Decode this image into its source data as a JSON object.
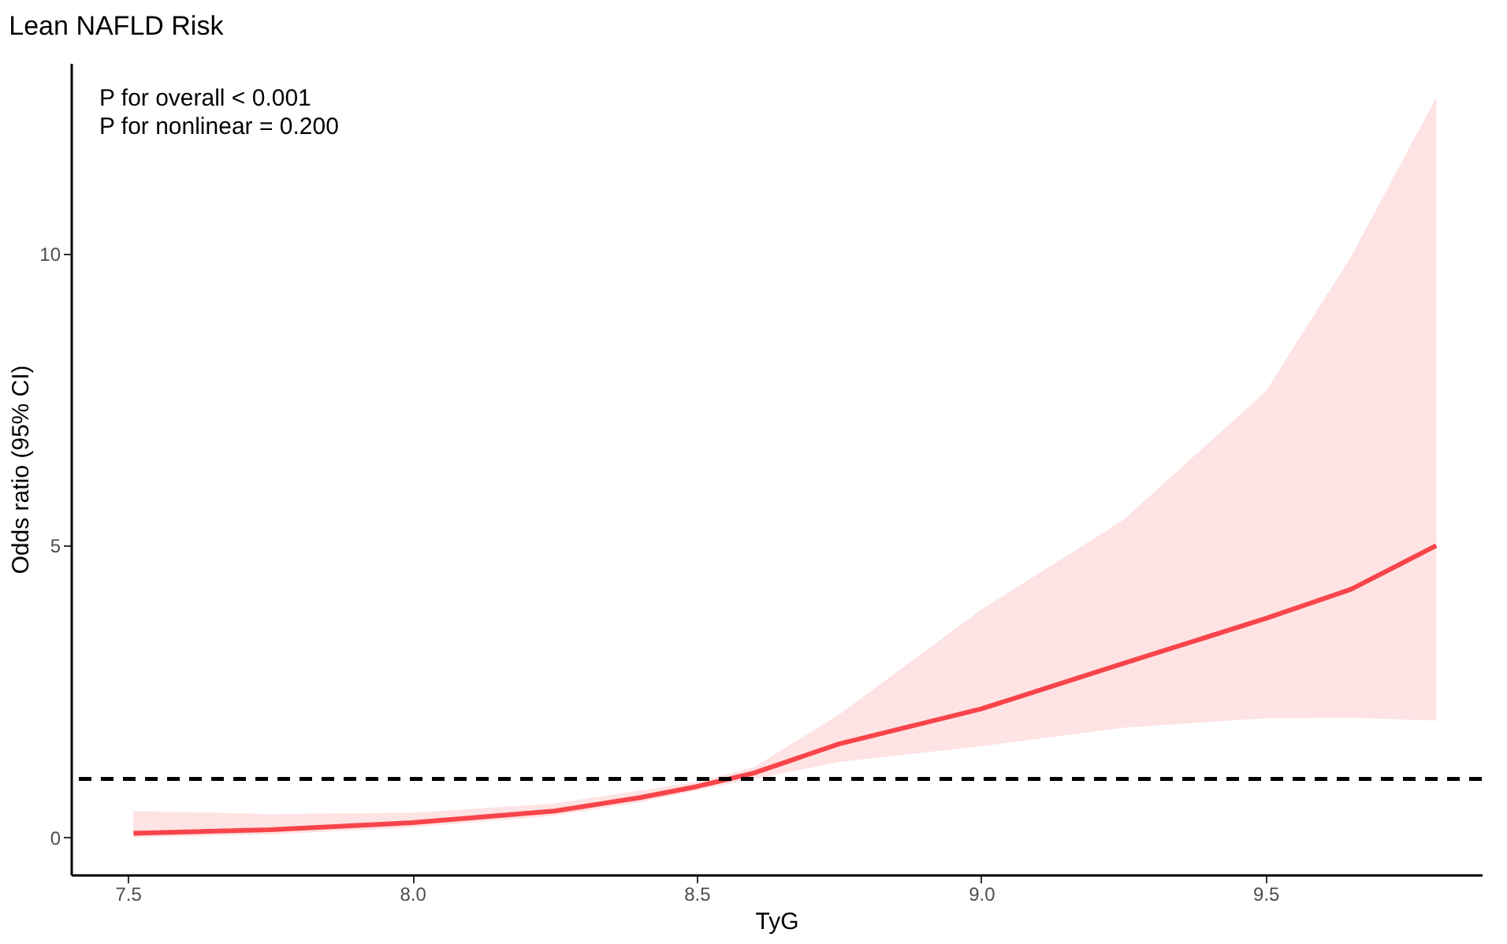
{
  "chart_data": {
    "type": "line",
    "title": "Lean NAFLD Risk",
    "xlabel": "TyG",
    "ylabel": "Odds ratio (95% CI)",
    "annotations": [
      "P for overall < 0.001",
      "P for nonlinear = 0.200"
    ],
    "x": [
      7.51,
      7.75,
      8.0,
      8.25,
      8.4,
      8.5,
      8.6,
      8.75,
      9.0,
      9.25,
      9.5,
      9.65,
      9.8
    ],
    "series": [
      {
        "color": "#f8444a",
        "values": [
          0.07,
          0.13,
          0.25,
          0.45,
          0.68,
          0.87,
          1.1,
          1.6,
          2.2,
          2.98,
          3.75,
          4.25,
          5.0
        ],
        "lower": [
          0.0,
          0.05,
          0.17,
          0.37,
          0.6,
          0.8,
          1.0,
          1.29,
          1.56,
          1.88,
          2.04,
          2.05,
          2.0
        ],
        "upper": [
          0.45,
          0.4,
          0.42,
          0.58,
          0.8,
          0.95,
          1.2,
          2.1,
          3.9,
          5.44,
          7.64,
          9.95,
          12.68
        ]
      }
    ],
    "xlim": [
      7.4,
      9.88
    ],
    "ylim": [
      -0.64,
      13.27
    ],
    "xticks": [
      7.5,
      {
        "value": 8,
        "label": "8.0"
      },
      8.5,
      {
        "value": 9,
        "label": "9.0"
      },
      9.5
    ],
    "yticks": [
      0,
      5,
      10
    ],
    "ref_lines": [
      {
        "axis": "y",
        "value": 1,
        "line_style": "dashed",
        "color": "#000000"
      }
    ],
    "grid": false,
    "line_style": "solid",
    "marker": "none"
  }
}
